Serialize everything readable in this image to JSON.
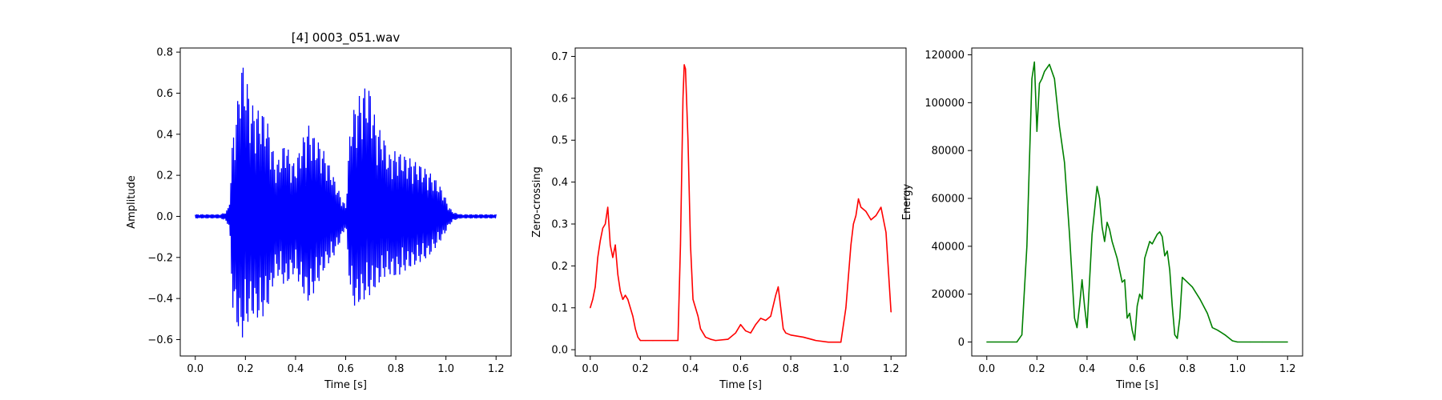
{
  "chart_data": [
    {
      "type": "line",
      "title": "[4] 0003_051.wav",
      "xlabel": "Time [s]",
      "ylabel": "Amplitude",
      "xlim": [
        -0.06,
        1.26
      ],
      "ylim": [
        -0.68,
        0.82
      ],
      "xticks": [
        "0.0",
        "0.2",
        "0.4",
        "0.6",
        "0.8",
        "1.0",
        "1.2"
      ],
      "yticks": [
        "−0.6",
        "−0.4",
        "−0.2",
        "0.0",
        "0.2",
        "0.4",
        "0.6",
        "0.8"
      ],
      "grid": false,
      "series": [
        {
          "color": "#0000ff",
          "style": "waveform",
          "x": [
            0.0,
            0.1,
            0.12,
            0.135,
            0.15,
            0.17,
            0.18,
            0.2,
            0.22,
            0.25,
            0.28,
            0.3,
            0.32,
            0.34,
            0.36,
            0.38,
            0.4,
            0.42,
            0.45,
            0.47,
            0.5,
            0.52,
            0.55,
            0.58,
            0.6,
            0.62,
            0.64,
            0.66,
            0.68,
            0.7,
            0.72,
            0.75,
            0.77,
            0.8,
            0.83,
            0.86,
            0.9,
            0.93,
            0.96,
            0.99,
            1.01,
            1.03,
            1.06,
            1.1,
            1.2
          ],
          "upper": [
            0.01,
            0.01,
            0.02,
            0.05,
            0.4,
            0.57,
            0.76,
            0.72,
            0.55,
            0.52,
            0.5,
            0.4,
            0.25,
            0.3,
            0.38,
            0.28,
            0.25,
            0.35,
            0.45,
            0.4,
            0.35,
            0.3,
            0.2,
            0.1,
            0.05,
            0.48,
            0.55,
            0.6,
            0.64,
            0.62,
            0.45,
            0.4,
            0.3,
            0.32,
            0.3,
            0.28,
            0.25,
            0.22,
            0.18,
            0.12,
            0.05,
            0.02,
            0.01,
            0.01,
            0.01
          ],
          "lower": [
            -0.01,
            -0.01,
            -0.02,
            -0.05,
            -0.45,
            -0.55,
            -0.62,
            -0.55,
            -0.48,
            -0.5,
            -0.48,
            -0.4,
            -0.28,
            -0.3,
            -0.35,
            -0.3,
            -0.27,
            -0.35,
            -0.42,
            -0.38,
            -0.3,
            -0.25,
            -0.2,
            -0.12,
            -0.05,
            -0.4,
            -0.45,
            -0.42,
            -0.4,
            -0.38,
            -0.35,
            -0.3,
            -0.28,
            -0.3,
            -0.27,
            -0.25,
            -0.22,
            -0.2,
            -0.15,
            -0.1,
            -0.05,
            -0.02,
            -0.01,
            -0.01,
            -0.01
          ]
        }
      ]
    },
    {
      "type": "line",
      "xlabel": "Time [s]",
      "ylabel": "Zero-crossing",
      "xlim": [
        -0.06,
        1.26
      ],
      "ylim": [
        -0.015,
        0.72
      ],
      "xticks": [
        "0.0",
        "0.2",
        "0.4",
        "0.6",
        "0.8",
        "1.0",
        "1.2"
      ],
      "yticks": [
        "0.0",
        "0.1",
        "0.2",
        "0.3",
        "0.4",
        "0.5",
        "0.6",
        "0.7"
      ],
      "grid": false,
      "series": [
        {
          "color": "#ff0000",
          "style": "line",
          "x": [
            0.0,
            0.01,
            0.02,
            0.03,
            0.04,
            0.05,
            0.06,
            0.07,
            0.08,
            0.09,
            0.1,
            0.11,
            0.12,
            0.13,
            0.14,
            0.15,
            0.16,
            0.17,
            0.18,
            0.19,
            0.2,
            0.22,
            0.25,
            0.3,
            0.35,
            0.36,
            0.37,
            0.375,
            0.38,
            0.39,
            0.4,
            0.41,
            0.42,
            0.43,
            0.44,
            0.46,
            0.48,
            0.5,
            0.55,
            0.58,
            0.6,
            0.62,
            0.64,
            0.66,
            0.68,
            0.7,
            0.72,
            0.74,
            0.75,
            0.76,
            0.77,
            0.78,
            0.8,
            0.85,
            0.9,
            0.95,
            1.0,
            1.02,
            1.04,
            1.05,
            1.06,
            1.07,
            1.08,
            1.1,
            1.12,
            1.14,
            1.16,
            1.18,
            1.2
          ],
          "y": [
            0.1,
            0.12,
            0.15,
            0.22,
            0.26,
            0.29,
            0.3,
            0.34,
            0.25,
            0.22,
            0.25,
            0.18,
            0.14,
            0.12,
            0.13,
            0.12,
            0.1,
            0.08,
            0.05,
            0.03,
            0.022,
            0.022,
            0.022,
            0.022,
            0.022,
            0.25,
            0.6,
            0.68,
            0.67,
            0.5,
            0.25,
            0.12,
            0.1,
            0.08,
            0.05,
            0.03,
            0.025,
            0.022,
            0.025,
            0.04,
            0.06,
            0.045,
            0.04,
            0.06,
            0.075,
            0.07,
            0.08,
            0.13,
            0.15,
            0.1,
            0.05,
            0.04,
            0.035,
            0.03,
            0.022,
            0.018,
            0.018,
            0.1,
            0.25,
            0.3,
            0.32,
            0.36,
            0.34,
            0.33,
            0.31,
            0.32,
            0.34,
            0.28,
            0.09
          ]
        }
      ]
    },
    {
      "type": "line",
      "xlabel": "Time [s]",
      "ylabel": "Energy",
      "xlim": [
        -0.06,
        1.26
      ],
      "ylim": [
        -5850,
        122850
      ],
      "xticks": [
        "0.0",
        "0.2",
        "0.4",
        "0.6",
        "0.8",
        "1.0",
        "1.2"
      ],
      "yticks": [
        "0",
        "20000",
        "40000",
        "60000",
        "80000",
        "100000",
        "120000"
      ],
      "grid": false,
      "series": [
        {
          "color": "#008000",
          "style": "line",
          "x": [
            0.0,
            0.1,
            0.12,
            0.14,
            0.16,
            0.18,
            0.19,
            0.2,
            0.21,
            0.22,
            0.23,
            0.25,
            0.27,
            0.29,
            0.31,
            0.33,
            0.35,
            0.36,
            0.37,
            0.38,
            0.39,
            0.4,
            0.42,
            0.44,
            0.45,
            0.46,
            0.47,
            0.48,
            0.49,
            0.5,
            0.52,
            0.54,
            0.55,
            0.56,
            0.57,
            0.58,
            0.59,
            0.6,
            0.61,
            0.62,
            0.63,
            0.65,
            0.66,
            0.67,
            0.68,
            0.69,
            0.7,
            0.71,
            0.72,
            0.73,
            0.74,
            0.75,
            0.76,
            0.77,
            0.78,
            0.8,
            0.82,
            0.85,
            0.88,
            0.9,
            0.92,
            0.95,
            0.98,
            1.0,
            1.05,
            1.1,
            1.2
          ],
          "y": [
            0,
            0,
            0,
            3000,
            40000,
            110000,
            117000,
            88000,
            108000,
            110000,
            113000,
            116000,
            110000,
            90000,
            75000,
            45000,
            10000,
            6000,
            15000,
            26000,
            15000,
            6000,
            45000,
            65000,
            60000,
            48000,
            42000,
            50000,
            47000,
            42000,
            35000,
            25000,
            26000,
            10000,
            12000,
            5000,
            800,
            15000,
            20000,
            18000,
            35000,
            42000,
            41000,
            43000,
            45000,
            46000,
            44000,
            36000,
            38000,
            30000,
            15000,
            3000,
            1500,
            10000,
            27000,
            25000,
            23000,
            18000,
            12000,
            6000,
            5000,
            3000,
            500,
            0,
            0,
            0,
            0
          ]
        }
      ]
    }
  ]
}
